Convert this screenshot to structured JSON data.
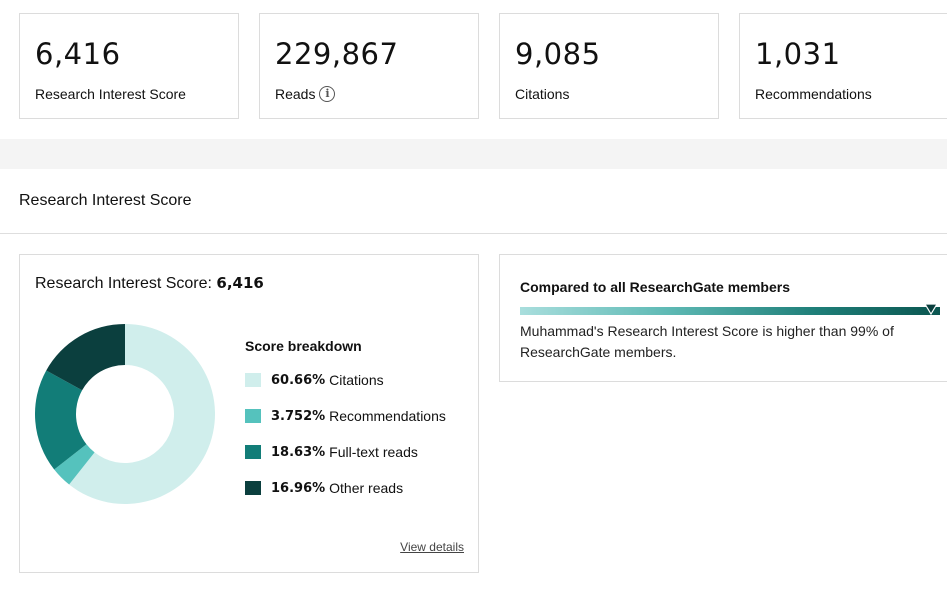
{
  "stats": [
    {
      "value": "6,416",
      "label": "Research Interest Score"
    },
    {
      "value": "229,867",
      "label": "Reads"
    },
    {
      "value": "9,085",
      "label": "Citations"
    },
    {
      "value": "1,031",
      "label": "Recommendations"
    }
  ],
  "info_icon": {
    "name": "info-icon",
    "glyph": "i"
  },
  "section": {
    "title": "Research Interest Score"
  },
  "score_card": {
    "heading_label": "Research Interest Score: ",
    "heading_value": "6,416",
    "breakdown_title": "Score breakdown",
    "view_details": "View details"
  },
  "chart_data": {
    "type": "pie",
    "donut": true,
    "categories": [
      "Citations",
      "Recommendations",
      "Full-text reads",
      "Other reads"
    ],
    "values": [
      60.66,
      3.752,
      18.63,
      16.96
    ],
    "labels": [
      "60.66%",
      "3.752%",
      "18.63%",
      "16.96%"
    ],
    "colors": [
      "#d0eeec",
      "#55c2bd",
      "#127d78",
      "#0b3f3e"
    ]
  },
  "compare": {
    "title": "Compared to all ResearchGate members",
    "text": "Muhammad's Research Interest Score is higher than 99% of ResearchGate members.",
    "percentile": 99
  }
}
